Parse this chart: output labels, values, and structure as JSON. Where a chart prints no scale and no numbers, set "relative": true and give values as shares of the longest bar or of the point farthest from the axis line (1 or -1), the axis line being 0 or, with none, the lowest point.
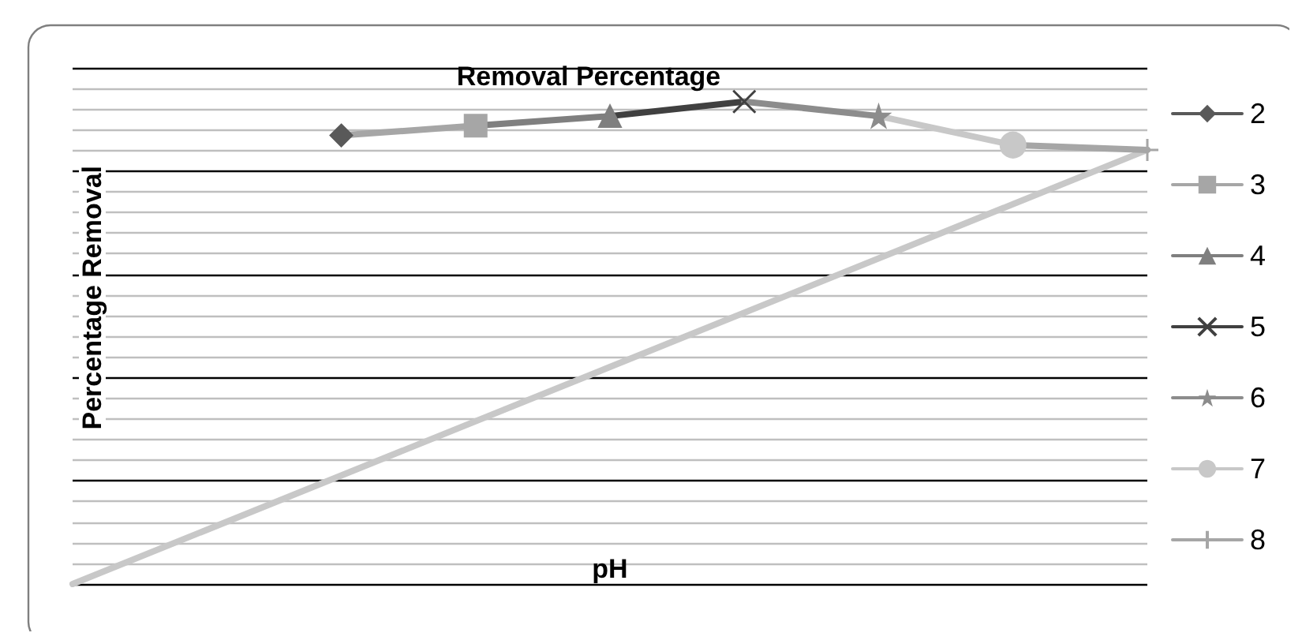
{
  "chart_data": {
    "type": "line",
    "title": "Removal Percentage",
    "xlabel": "pH",
    "ylabel": "Percentage Removal",
    "relative": true,
    "grid": "y",
    "legend": "right",
    "line_style": "solid",
    "categories": [
      null,
      null,
      null,
      null,
      null,
      null,
      null,
      null,
      null
    ],
    "series": [
      {
        "name": "2",
        "color": "#595959",
        "marker": "diamond",
        "values": [
          null,
          null,
          0.93,
          null,
          null,
          null,
          null,
          null,
          null
        ]
      },
      {
        "name": "3",
        "color": "#a6a6a6",
        "marker": "square",
        "values": [
          null,
          null,
          0.93,
          0.95,
          null,
          null,
          null,
          null,
          null
        ]
      },
      {
        "name": "4",
        "color": "#7f7f7f",
        "marker": "triangle",
        "values": [
          null,
          null,
          null,
          0.95,
          0.97,
          null,
          null,
          null,
          null
        ]
      },
      {
        "name": "5",
        "color": "#404040",
        "marker": "x",
        "values": [
          null,
          null,
          null,
          null,
          0.97,
          1.0,
          null,
          null,
          null
        ]
      },
      {
        "name": "6",
        "color": "#8c8c8c",
        "marker": "star",
        "values": [
          null,
          null,
          null,
          null,
          null,
          1.0,
          0.97,
          null,
          null
        ]
      },
      {
        "name": "7",
        "color": "#c8c8c8",
        "marker": "circle",
        "values": [
          null,
          null,
          null,
          null,
          null,
          null,
          0.97,
          0.91,
          null
        ]
      },
      {
        "name": "8",
        "color": "#a6a6a6",
        "marker": "cross",
        "values": [
          null,
          null,
          null,
          null,
          null,
          null,
          null,
          0.91,
          0.9
        ]
      },
      {
        "color": "#c8c8c8",
        "marker": "none",
        "values": [
          0,
          null,
          null,
          null,
          null,
          null,
          null,
          null,
          0.9
        ]
      }
    ]
  }
}
